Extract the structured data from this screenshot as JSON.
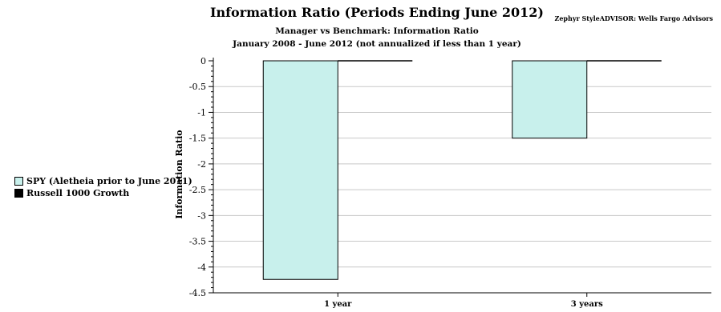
{
  "source_label": "Zephyr StyleADVISOR: Wells Fargo Advisors",
  "chart_data": {
    "type": "bar",
    "title": "Information Ratio (Periods Ending June 2012)",
    "subtitle": "Manager vs Benchmark: Information Ratio",
    "subtitle2": "January 2008 - June 2012 (not annualized if less than 1 year)",
    "xlabel": "",
    "ylabel": "Information Ratio",
    "categories": [
      "1 year",
      "3 years"
    ],
    "series": [
      {
        "name": "SPY (Aletheia prior to June 2011)",
        "color": "#c8f0ec",
        "values": [
          -4.24,
          -1.5
        ]
      },
      {
        "name": "Russell 1000 Growth",
        "color": "#000000",
        "values": [
          0,
          0
        ]
      }
    ],
    "ylim": [
      -4.5,
      0
    ],
    "yticks": [
      "0",
      "-0.5",
      "-1",
      "-1.5",
      "-2",
      "-2.5",
      "-3",
      "-3.5",
      "-4",
      "-4.5"
    ],
    "grid": true,
    "legend_position": "left"
  }
}
